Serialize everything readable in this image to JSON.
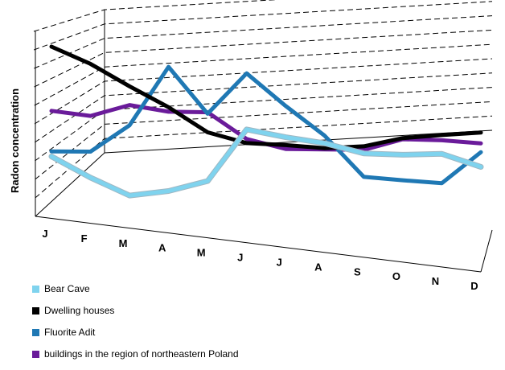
{
  "chart_data": {
    "type": "line",
    "style": "3d-perspective",
    "ylabel": "Radon concentration",
    "categories": [
      "J",
      "F",
      "M",
      "A",
      "M",
      "J",
      "J",
      "A",
      "S",
      "O",
      "N",
      "D"
    ],
    "ylim": [
      0,
      100
    ],
    "grid": true,
    "legend_position": "bottom-left",
    "series": [
      {
        "name": "Bear Cave",
        "color": "#7fd3ee",
        "values": [
          35,
          22,
          10,
          12,
          18,
          55,
          50,
          46,
          38,
          37,
          38,
          25
        ]
      },
      {
        "name": "Dwelling houses",
        "color": "#000000",
        "values": [
          100,
          92,
          80,
          68,
          52,
          45,
          44,
          42,
          44,
          52,
          56,
          60
        ]
      },
      {
        "name": "Fluorite Adit",
        "color": "#1f78b4",
        "values": [
          38,
          38,
          55,
          95,
          65,
          96,
          74,
          52,
          18,
          14,
          10,
          40
        ]
      },
      {
        "name": "buildings in the region of northeastern Poland",
        "color": "#6a1b9a",
        "values": [
          62,
          60,
          68,
          65,
          66,
          48,
          41,
          41,
          41,
          51,
          51,
          49
        ]
      }
    ]
  }
}
